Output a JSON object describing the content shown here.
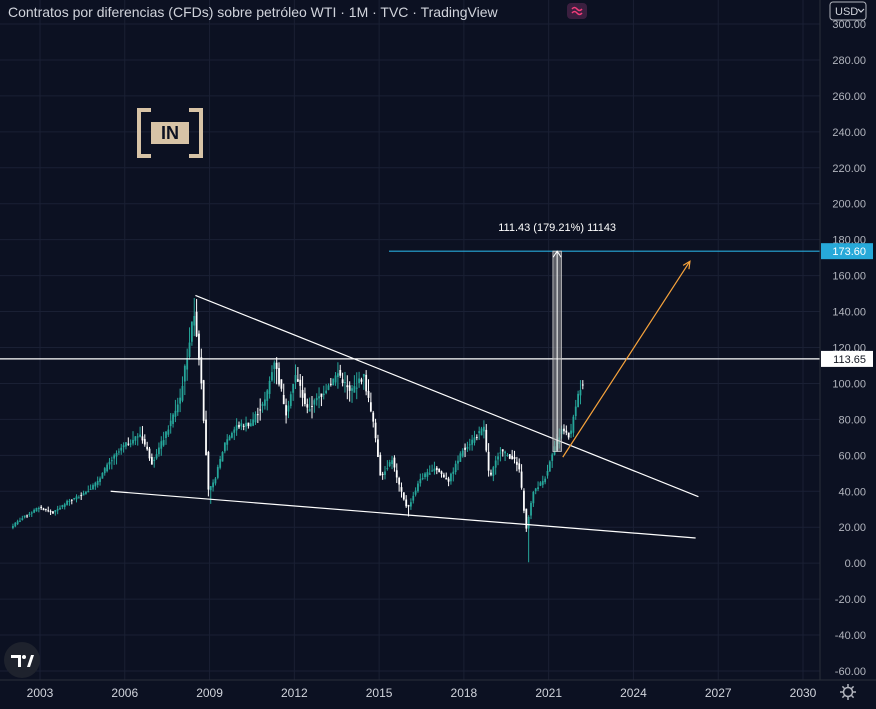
{
  "header": {
    "title": "Contratos por diferencias (CFDs) sobre petróleo WTI · 1M · TVC · TradingView",
    "currency": "USD",
    "currency_chevron_icon": "chevron-down-icon",
    "status_icon": "wave-icon"
  },
  "logo": {
    "icon": "beincrypto-logo-icon",
    "text": "IN"
  },
  "tv_logo_icon": "tradingview-logo-icon",
  "settings_icon": "gear-icon",
  "colors": {
    "background": "#0c1122",
    "candle_up": "#26a69a",
    "candle_down": "#ffffff",
    "trendline": "#ffffff",
    "projection_arrow": "#f7a33c",
    "target_line": "#27a9d9",
    "measure_box": "#9e9e9e",
    "axis_text": "#b2b5be"
  },
  "chart_data": {
    "type": "candlestick",
    "symbol": "WTI",
    "interval": "1M",
    "x_ticks": [
      "2003",
      "2006",
      "2009",
      "2012",
      "2015",
      "2018",
      "2021",
      "2024",
      "2027",
      "2030"
    ],
    "y_ticks": [
      "300.00",
      "280.00",
      "260.00",
      "240.00",
      "220.00",
      "200.00",
      "180.00",
      "160.00",
      "140.00",
      "120.00",
      "100.00",
      "80.00",
      "60.00",
      "40.00",
      "20.00",
      "0.00",
      "-20.00",
      "-40.00",
      "-60.00"
    ],
    "xlim": [
      2002.2,
      2030.6
    ],
    "ylim": [
      -66,
      303
    ],
    "price_path": [
      [
        2002.0,
        20
      ],
      [
        2002.5,
        26
      ],
      [
        2003.0,
        31
      ],
      [
        2003.5,
        28
      ],
      [
        2004.0,
        34
      ],
      [
        2004.5,
        38
      ],
      [
        2005.0,
        44
      ],
      [
        2005.5,
        56
      ],
      [
        2006.0,
        65
      ],
      [
        2006.6,
        72
      ],
      [
        2007.0,
        56
      ],
      [
        2007.5,
        72
      ],
      [
        2008.0,
        92
      ],
      [
        2008.5,
        140
      ],
      [
        2008.75,
        102
      ],
      [
        2009.0,
        40
      ],
      [
        2009.2,
        45
      ],
      [
        2009.6,
        68
      ],
      [
        2010.0,
        76
      ],
      [
        2010.5,
        78
      ],
      [
        2011.0,
        90
      ],
      [
        2011.33,
        113
      ],
      [
        2011.75,
        84
      ],
      [
        2012.1,
        105
      ],
      [
        2012.5,
        85
      ],
      [
        2013.0,
        94
      ],
      [
        2013.6,
        106
      ],
      [
        2014.0,
        95
      ],
      [
        2014.5,
        104
      ],
      [
        2014.9,
        72
      ],
      [
        2015.1,
        48
      ],
      [
        2015.5,
        58
      ],
      [
        2015.7,
        45
      ],
      [
        2016.05,
        30
      ],
      [
        2016.5,
        47
      ],
      [
        2017.0,
        53
      ],
      [
        2017.5,
        46
      ],
      [
        2018.0,
        63
      ],
      [
        2018.75,
        75
      ],
      [
        2018.95,
        46
      ],
      [
        2019.3,
        63
      ],
      [
        2019.8,
        58
      ],
      [
        2020.0,
        52
      ],
      [
        2020.25,
        19
      ],
      [
        2020.5,
        40
      ],
      [
        2020.9,
        47
      ],
      [
        2021.2,
        62
      ],
      [
        2021.5,
        74
      ],
      [
        2021.8,
        70
      ],
      [
        2022.0,
        88
      ],
      [
        2022.2,
        100
      ]
    ],
    "candles_note": "",
    "horizontal_levels": [
      {
        "value": 113.65,
        "label": "113.65",
        "color": "#ffffff"
      },
      {
        "value": 173.6,
        "label": "173.60",
        "color": "#27a9d9"
      }
    ],
    "trendlines": [
      {
        "name": "upper-resistance",
        "from": [
          2008.5,
          149
        ],
        "to": [
          2026.3,
          37
        ]
      },
      {
        "name": "lower-support",
        "from": [
          2005.5,
          40
        ],
        "to": [
          2026.2,
          14
        ]
      }
    ],
    "measurement": {
      "label": "111.43 (179.21%) 11143",
      "from_value": 62.17,
      "to_value": 173.6,
      "x_range": [
        2021.15,
        2021.45
      ]
    },
    "projection_arrow": {
      "from": [
        2021.5,
        59
      ],
      "to": [
        2026.0,
        168
      ]
    }
  }
}
